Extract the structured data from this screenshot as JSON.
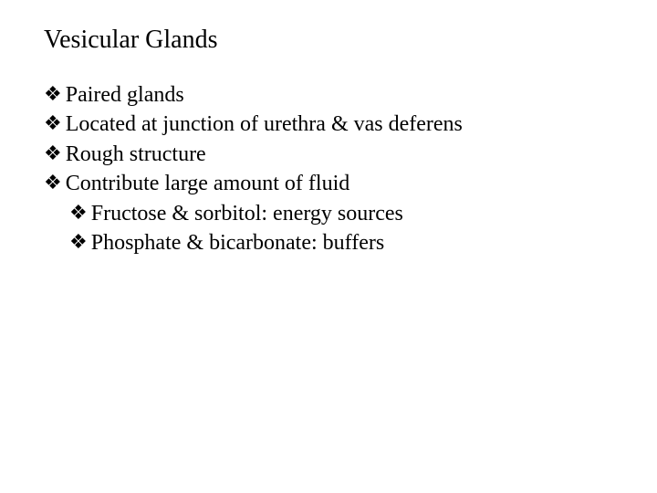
{
  "title": "Vesicular Glands",
  "bullets": [
    {
      "level": 1,
      "text": "Paired glands"
    },
    {
      "level": 1,
      "text": "Located at junction of urethra & vas deferens"
    },
    {
      "level": 1,
      "text": "Rough structure"
    },
    {
      "level": 1,
      "text": "Contribute large amount of fluid"
    },
    {
      "level": 2,
      "text": "Fructose & sorbitol: energy sources"
    },
    {
      "level": 2,
      "text": "Phosphate & bicarbonate: buffers"
    }
  ],
  "marker": "❖"
}
